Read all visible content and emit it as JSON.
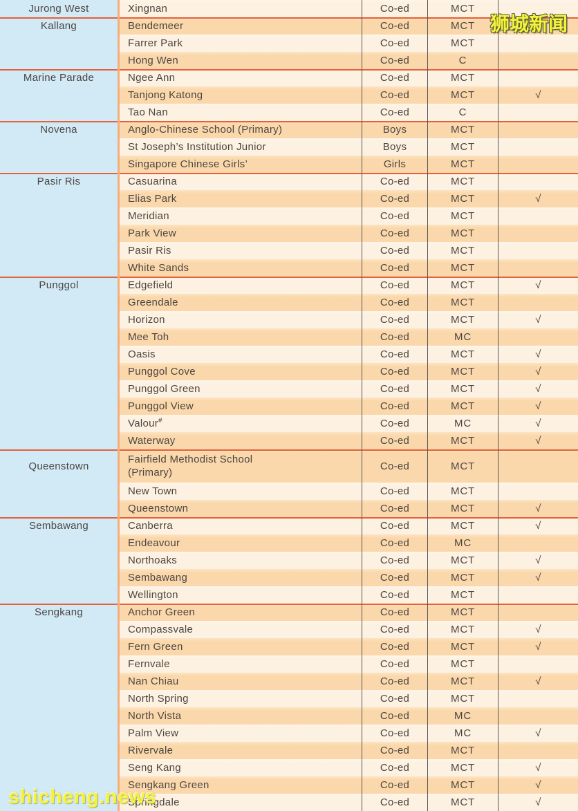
{
  "watermarks": {
    "top_right": "狮城新闻",
    "bottom_left": "shicheng.news"
  },
  "colors": {
    "row_light": "#fdf1e1",
    "row_dark": "#fbd8ab",
    "area_column_bg": "#d2eaf6",
    "group_separator": "#e3613b",
    "column_grid_line": "#575451",
    "school_column_left_border": "#f4ad7c",
    "text": "#4b4642",
    "watermark_yellow": "#f5f33b"
  },
  "table": {
    "check_glyph": "√",
    "groups": [
      {
        "area": "Jurong West",
        "schools": [
          {
            "name": "Xingnan",
            "gender": "Co-ed",
            "mt": "MCT",
            "check": "",
            "band": "light"
          }
        ]
      },
      {
        "area": "Kallang",
        "schools": [
          {
            "name": "Bendemeer",
            "gender": "Co-ed",
            "mt": "MCT",
            "check": "",
            "band": "dark"
          },
          {
            "name": "Farrer Park",
            "gender": "Co-ed",
            "mt": "MCT",
            "check": "",
            "band": "light"
          },
          {
            "name": "Hong Wen",
            "gender": "Co-ed",
            "mt": "C",
            "check": "",
            "band": "dark"
          }
        ]
      },
      {
        "area": "Marine Parade",
        "schools": [
          {
            "name": "Ngee Ann",
            "gender": "Co-ed",
            "mt": "MCT",
            "check": "",
            "band": "light"
          },
          {
            "name": "Tanjong Katong",
            "gender": "Co-ed",
            "mt": "MCT",
            "check": "√",
            "band": "dark"
          },
          {
            "name": "Tao Nan",
            "gender": "Co-ed",
            "mt": "C",
            "check": "",
            "band": "light"
          }
        ]
      },
      {
        "area": "Novena",
        "schools": [
          {
            "name": "Anglo-Chinese School (Primary)",
            "gender": "Boys",
            "mt": "MCT",
            "check": "",
            "band": "dark"
          },
          {
            "name": "St Joseph’s Institution Junior",
            "gender": "Boys",
            "mt": "MCT",
            "check": "",
            "band": "light"
          },
          {
            "name": "Singapore Chinese Girls’",
            "gender": "Girls",
            "mt": "MCT",
            "check": "",
            "band": "dark"
          }
        ]
      },
      {
        "area": "Pasir Ris",
        "schools": [
          {
            "name": "Casuarina",
            "gender": "Co-ed",
            "mt": "MCT",
            "check": "",
            "band": "light"
          },
          {
            "name": "Elias Park",
            "gender": "Co-ed",
            "mt": "MCT",
            "check": "√",
            "band": "dark"
          },
          {
            "name": "Meridian",
            "gender": "Co-ed",
            "mt": "MCT",
            "check": "",
            "band": "light"
          },
          {
            "name": "Park View",
            "gender": "Co-ed",
            "mt": "MCT",
            "check": "",
            "band": "dark"
          },
          {
            "name": "Pasir Ris",
            "gender": "Co-ed",
            "mt": "MCT",
            "check": "",
            "band": "light"
          },
          {
            "name": "White Sands",
            "gender": "Co-ed",
            "mt": "MCT",
            "check": "",
            "band": "dark"
          }
        ]
      },
      {
        "area": "Punggol",
        "schools": [
          {
            "name": "Edgefield",
            "gender": "Co-ed",
            "mt": "MCT",
            "check": "√",
            "band": "light"
          },
          {
            "name": "Greendale",
            "gender": "Co-ed",
            "mt": "MCT",
            "check": "",
            "band": "dark"
          },
          {
            "name": "Horizon",
            "gender": "Co-ed",
            "mt": "MCT",
            "check": "√",
            "band": "light"
          },
          {
            "name": "Mee Toh",
            "gender": "Co-ed",
            "mt": "MC",
            "check": "",
            "band": "dark"
          },
          {
            "name": "Oasis",
            "gender": "Co-ed",
            "mt": "MCT",
            "check": "√",
            "band": "light"
          },
          {
            "name": "Punggol Cove",
            "gender": "Co-ed",
            "mt": "MCT",
            "check": "√",
            "band": "dark"
          },
          {
            "name": "Punggol Green",
            "gender": "Co-ed",
            "mt": "MCT",
            "check": "√",
            "band": "light"
          },
          {
            "name": "Punggol View",
            "gender": "Co-ed",
            "mt": "MCT",
            "check": "√",
            "band": "dark"
          },
          {
            "name": "Valour",
            "sup": "#",
            "gender": "Co-ed",
            "mt": "MC",
            "check": "√",
            "band": "light"
          },
          {
            "name": "Waterway",
            "gender": "Co-ed",
            "mt": "MCT",
            "check": "√",
            "band": "dark"
          }
        ]
      },
      {
        "area": "Queenstown",
        "schools": [
          {
            "name": "Fairfield Methodist School\n(Primary)",
            "gender": "Co-ed",
            "mt": "MCT",
            "check": "",
            "band": "dark",
            "tall": true
          },
          {
            "name": "New Town",
            "gender": "Co-ed",
            "mt": "MCT",
            "check": "",
            "band": "light"
          },
          {
            "name": "Queenstown",
            "gender": "Co-ed",
            "mt": "MCT",
            "check": "√",
            "band": "dark"
          }
        ]
      },
      {
        "area": "Sembawang",
        "schools": [
          {
            "name": "Canberra",
            "gender": "Co-ed",
            "mt": "MCT",
            "check": "√",
            "band": "light"
          },
          {
            "name": "Endeavour",
            "gender": "Co-ed",
            "mt": "MC",
            "check": "",
            "band": "dark"
          },
          {
            "name": "Northoaks",
            "gender": "Co-ed",
            "mt": "MCT",
            "check": "√",
            "band": "light"
          },
          {
            "name": "Sembawang",
            "gender": "Co-ed",
            "mt": "MCT",
            "check": "√",
            "band": "dark"
          },
          {
            "name": "Wellington",
            "gender": "Co-ed",
            "mt": "MCT",
            "check": "",
            "band": "light"
          }
        ]
      },
      {
        "area": "Sengkang",
        "schools": [
          {
            "name": "Anchor Green",
            "gender": "Co-ed",
            "mt": "MCT",
            "check": "",
            "band": "dark"
          },
          {
            "name": "Compassvale",
            "gender": "Co-ed",
            "mt": "MCT",
            "check": "√",
            "band": "light"
          },
          {
            "name": "Fern Green",
            "gender": "Co-ed",
            "mt": "MCT",
            "check": "√",
            "band": "dark"
          },
          {
            "name": "Fernvale",
            "gender": "Co-ed",
            "mt": "MCT",
            "check": "",
            "band": "light"
          },
          {
            "name": "Nan Chiau",
            "gender": "Co-ed",
            "mt": "MCT",
            "check": "√",
            "band": "dark"
          },
          {
            "name": "North Spring",
            "gender": "Co-ed",
            "mt": "MCT",
            "check": "",
            "band": "light"
          },
          {
            "name": "North Vista",
            "gender": "Co-ed",
            "mt": "MC",
            "check": "",
            "band": "dark"
          },
          {
            "name": "Palm View",
            "gender": "Co-ed",
            "mt": "MC",
            "check": "√",
            "band": "light"
          },
          {
            "name": "Rivervale",
            "gender": "Co-ed",
            "mt": "MCT",
            "check": "",
            "band": "dark"
          },
          {
            "name": "Seng Kang",
            "gender": "Co-ed",
            "mt": "MCT",
            "check": "√",
            "band": "light"
          },
          {
            "name": "Sengkang Green",
            "gender": "Co-ed",
            "mt": "MCT",
            "check": "√",
            "band": "dark"
          },
          {
            "name": "Springdale",
            "gender": "Co-ed",
            "mt": "MCT",
            "check": "√",
            "band": "light"
          }
        ]
      }
    ]
  }
}
